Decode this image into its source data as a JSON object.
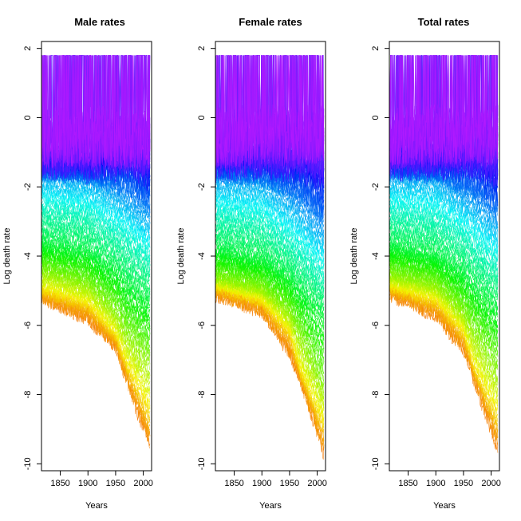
{
  "chart_data": [
    {
      "type": "line",
      "title": "Male rates",
      "xlabel": "Years",
      "ylabel": "Log death rate",
      "xlim": [
        1816,
        2015
      ],
      "ylim": [
        -10.2,
        2.2
      ],
      "x_ticks": [
        1850,
        1900,
        1950,
        2000
      ],
      "y_ticks": [
        2,
        0,
        -2,
        -4,
        -6,
        -8,
        -10
      ],
      "grid": false,
      "legend": "none",
      "x_range": [
        1816,
        2012
      ],
      "age_colors": "rainbow from orange (age 0) through yellow, green, cyan, blue to purple (oldest ages)",
      "series_summary": [
        {
          "age": 0,
          "y_at": [
            [
              1816,
              -5.2
            ],
            [
              1900,
              -5.8
            ],
            [
              1950,
              -6.6
            ],
            [
              1970,
              -7.6
            ],
            [
              2012,
              -9.5
            ]
          ]
        },
        {
          "age": 10,
          "y_at": [
            [
              1816,
              -5.0
            ],
            [
              1900,
              -5.4
            ],
            [
              1950,
              -6.3
            ],
            [
              1970,
              -7.2
            ],
            [
              2012,
              -8.6
            ]
          ]
        },
        {
          "age": 25,
          "y_at": [
            [
              1816,
              -4.4
            ],
            [
              1900,
              -4.8
            ],
            [
              1950,
              -5.6
            ],
            [
              1970,
              -6.2
            ],
            [
              2012,
              -7.0
            ]
          ]
        },
        {
          "age": 45,
          "y_at": [
            [
              1816,
              -3.6
            ],
            [
              1900,
              -3.9
            ],
            [
              1950,
              -4.4
            ],
            [
              1970,
              -4.8
            ],
            [
              2012,
              -5.3
            ]
          ]
        },
        {
          "age": 60,
          "y_at": [
            [
              1816,
              -2.6
            ],
            [
              1900,
              -2.8
            ],
            [
              1950,
              -3.3
            ],
            [
              1970,
              -3.5
            ],
            [
              2012,
              -4.1
            ]
          ]
        },
        {
          "age": 75,
          "y_at": [
            [
              1816,
              -1.7
            ],
            [
              1900,
              -1.8
            ],
            [
              1950,
              -2.2
            ],
            [
              1970,
              -2.4
            ],
            [
              2012,
              -2.9
            ]
          ]
        },
        {
          "age": 90,
          "y_at": [
            [
              1816,
              -1.2
            ],
            [
              1900,
              -1.3
            ],
            [
              1950,
              -1.2
            ],
            [
              1970,
              -1.1
            ],
            [
              2012,
              -1.6
            ]
          ]
        },
        {
          "age": 105,
          "y_at": [
            [
              1816,
              -0.6
            ],
            [
              1900,
              -0.5
            ],
            [
              1950,
              -0.6
            ],
            [
              1970,
              -0.6
            ],
            [
              2012,
              -0.6
            ]
          ]
        }
      ]
    },
    {
      "type": "line",
      "title": "Female rates",
      "xlabel": "Years",
      "ylabel": "Log death rate",
      "xlim": [
        1816,
        2015
      ],
      "ylim": [
        -10.2,
        2.2
      ],
      "x_ticks": [
        1850,
        1900,
        1950,
        2000
      ],
      "y_ticks": [
        2,
        0,
        -2,
        -4,
        -6,
        -8,
        -10
      ],
      "grid": false,
      "legend": "none",
      "x_range": [
        1816,
        2012
      ],
      "age_colors": "rainbow from orange (age 0) through yellow, green, cyan, blue to purple (oldest ages)",
      "series_summary": [
        {
          "age": 0,
          "y_at": [
            [
              1816,
              -5.1
            ],
            [
              1900,
              -5.6
            ],
            [
              1950,
              -6.8
            ],
            [
              1970,
              -7.6
            ],
            [
              2012,
              -9.7
            ]
          ]
        },
        {
          "age": 10,
          "y_at": [
            [
              1816,
              -4.9
            ],
            [
              1900,
              -5.3
            ],
            [
              1950,
              -6.2
            ],
            [
              1970,
              -7.4
            ],
            [
              2012,
              -8.9
            ]
          ]
        },
        {
          "age": 25,
          "y_at": [
            [
              1816,
              -4.6
            ],
            [
              1900,
              -4.9
            ],
            [
              1950,
              -5.6
            ],
            [
              1970,
              -6.3
            ],
            [
              2012,
              -7.8
            ]
          ]
        },
        {
          "age": 45,
          "y_at": [
            [
              1816,
              -3.8
            ],
            [
              1900,
              -4.1
            ],
            [
              1950,
              -4.6
            ],
            [
              1970,
              -5.0
            ],
            [
              2012,
              -5.7
            ]
          ]
        },
        {
          "age": 60,
          "y_at": [
            [
              1816,
              -2.8
            ],
            [
              1900,
              -3.0
            ],
            [
              1950,
              -3.6
            ],
            [
              1970,
              -3.9
            ],
            [
              2012,
              -4.6
            ]
          ]
        },
        {
          "age": 75,
          "y_at": [
            [
              1816,
              -1.8
            ],
            [
              1900,
              -1.9
            ],
            [
              1950,
              -2.4
            ],
            [
              1970,
              -2.7
            ],
            [
              2012,
              -3.3
            ]
          ]
        },
        {
          "age": 90,
          "y_at": [
            [
              1816,
              -1.2
            ],
            [
              1900,
              -1.2
            ],
            [
              1950,
              -1.3
            ],
            [
              1970,
              -1.3
            ],
            [
              2012,
              -1.8
            ]
          ]
        },
        {
          "age": 105,
          "y_at": [
            [
              1816,
              -0.6
            ],
            [
              1900,
              -0.5
            ],
            [
              1950,
              -0.5
            ],
            [
              1970,
              -0.5
            ],
            [
              2012,
              -0.4
            ]
          ]
        }
      ]
    },
    {
      "type": "line",
      "title": "Total rates",
      "xlabel": "Years",
      "ylabel": "Log death rate",
      "xlim": [
        1816,
        2015
      ],
      "ylim": [
        -10.2,
        2.2
      ],
      "x_ticks": [
        1850,
        1900,
        1950,
        2000
      ],
      "y_ticks": [
        2,
        0,
        -2,
        -4,
        -6,
        -8,
        -10
      ],
      "grid": false,
      "legend": "none",
      "x_range": [
        1816,
        2012
      ],
      "age_colors": "rainbow from orange (age 0) through yellow, green, cyan, blue to purple (oldest ages)",
      "series_summary": [
        {
          "age": 0,
          "y_at": [
            [
              1816,
              -5.1
            ],
            [
              1900,
              -5.7
            ],
            [
              1950,
              -6.7
            ],
            [
              1970,
              -7.6
            ],
            [
              2012,
              -9.6
            ]
          ]
        },
        {
          "age": 10,
          "y_at": [
            [
              1816,
              -4.9
            ],
            [
              1900,
              -5.3
            ],
            [
              1950,
              -6.2
            ],
            [
              1970,
              -7.3
            ],
            [
              2012,
              -8.7
            ]
          ]
        },
        {
          "age": 25,
          "y_at": [
            [
              1816,
              -4.5
            ],
            [
              1900,
              -4.8
            ],
            [
              1950,
              -5.6
            ],
            [
              1970,
              -6.2
            ],
            [
              2012,
              -7.3
            ]
          ]
        },
        {
          "age": 45,
          "y_at": [
            [
              1816,
              -3.7
            ],
            [
              1900,
              -4.0
            ],
            [
              1950,
              -4.5
            ],
            [
              1970,
              -4.9
            ],
            [
              2012,
              -5.5
            ]
          ]
        },
        {
          "age": 60,
          "y_at": [
            [
              1816,
              -2.7
            ],
            [
              1900,
              -2.9
            ],
            [
              1950,
              -3.4
            ],
            [
              1970,
              -3.7
            ],
            [
              2012,
              -4.3
            ]
          ]
        },
        {
          "age": 75,
          "y_at": [
            [
              1816,
              -1.7
            ],
            [
              1900,
              -1.8
            ],
            [
              1950,
              -2.3
            ],
            [
              1970,
              -2.5
            ],
            [
              2012,
              -3.1
            ]
          ]
        },
        {
          "age": 90,
          "y_at": [
            [
              1816,
              -1.2
            ],
            [
              1900,
              -1.2
            ],
            [
              1950,
              -1.2
            ],
            [
              1970,
              -1.2
            ],
            [
              2012,
              -1.7
            ]
          ]
        },
        {
          "age": 105,
          "y_at": [
            [
              1816,
              -0.6
            ],
            [
              1900,
              -0.5
            ],
            [
              1950,
              -0.5
            ],
            [
              1970,
              -0.5
            ],
            [
              2012,
              -0.5
            ]
          ]
        }
      ]
    }
  ]
}
